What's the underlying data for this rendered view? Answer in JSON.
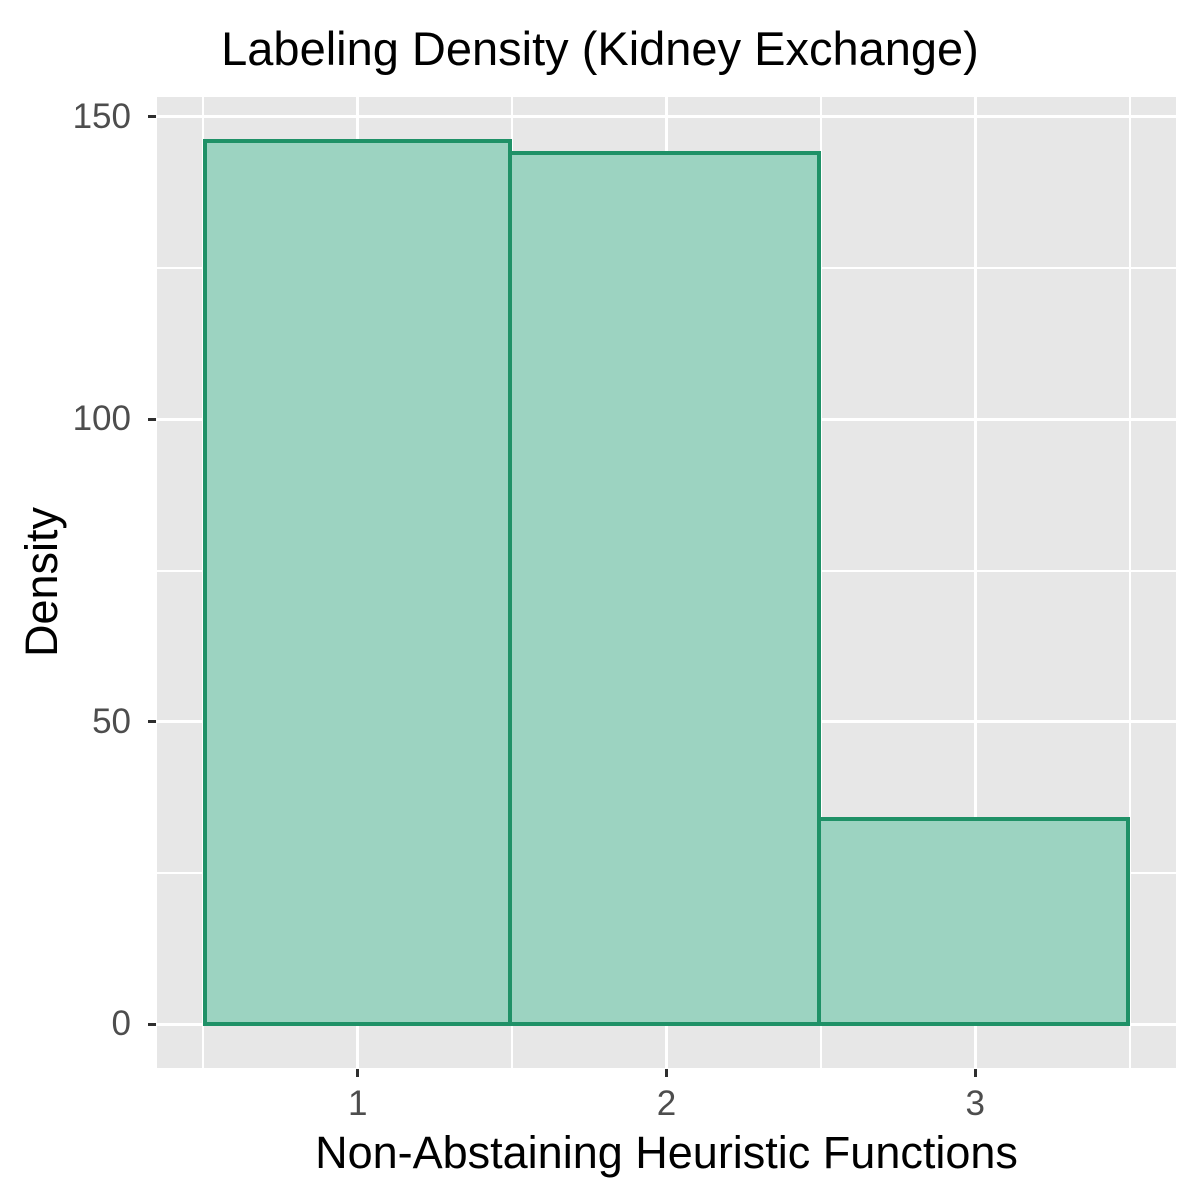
{
  "chart_data": {
    "type": "bar",
    "subtype": "histogram",
    "title": "Labeling Density (Kidney Exchange)",
    "xlabel": "Non-Abstaining Heuristic Functions",
    "ylabel": "Density",
    "categories": [
      1,
      2,
      3
    ],
    "values": [
      146,
      144,
      34
    ],
    "bin_edges": [
      0.5,
      1.5,
      2.5,
      3.5
    ],
    "x_ticks": [
      "1",
      "2",
      "3"
    ],
    "x_tick_positions": [
      1,
      2,
      3
    ],
    "y_ticks": [
      "0",
      "50",
      "100",
      "150"
    ],
    "y_tick_positions": [
      0,
      50,
      100,
      150
    ],
    "x_minor_gridlines": [
      0.5,
      1.5,
      2.5,
      3.5
    ],
    "y_minor_gridlines": [
      25,
      75,
      125
    ],
    "xlim": [
      0.35,
      3.65
    ],
    "ylim": [
      -7.2,
      153.3
    ],
    "grid": true,
    "legend": false,
    "style": {
      "bar_fill": "#9CD3C1",
      "bar_border": "#1F9167",
      "panel_background": "#E7E7E7",
      "gridline_color": "#FFFFFF",
      "tick_mark_color": "#2E2E2E",
      "tick_label_color": "#4D4D4D",
      "title_color": "#000000"
    }
  }
}
